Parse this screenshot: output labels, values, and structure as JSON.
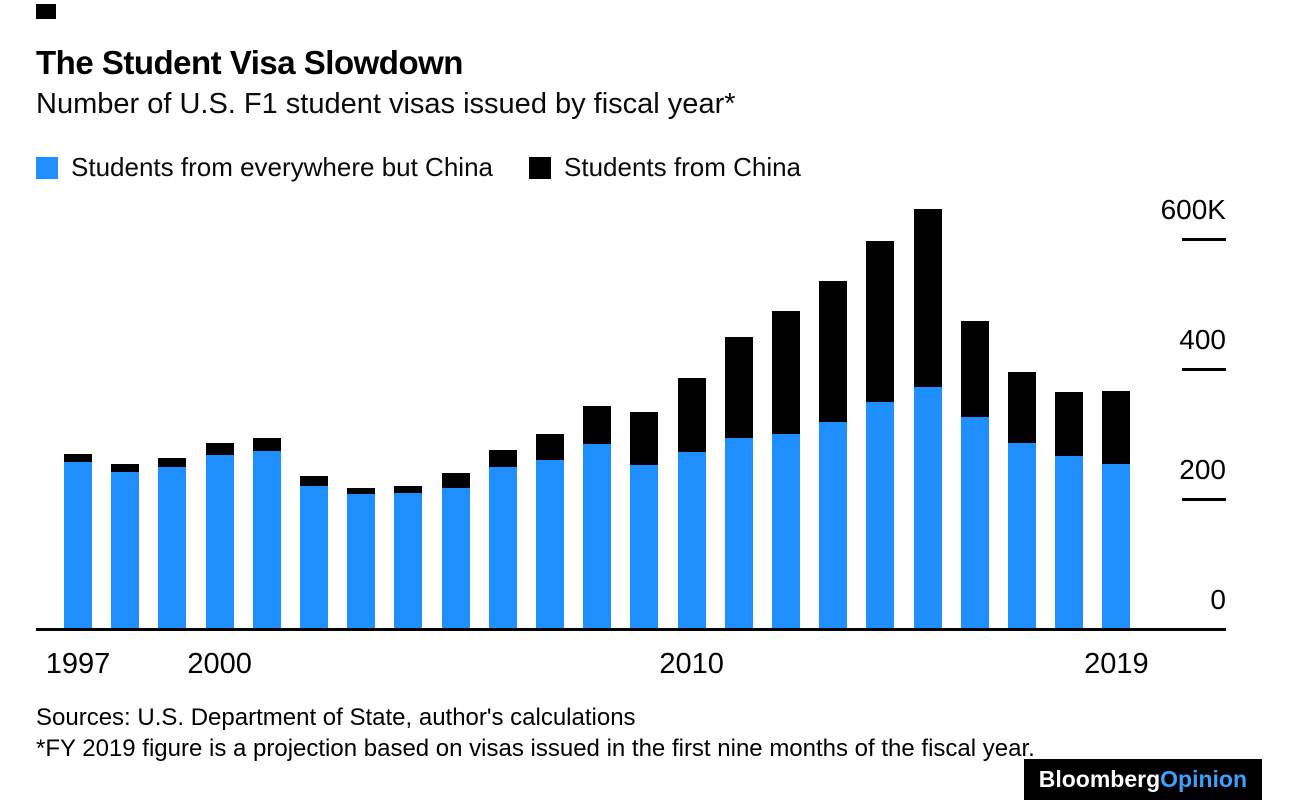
{
  "header": {
    "title": "The Student Visa Slowdown",
    "subtitle": "Number of U.S. F1 student visas issued by fiscal year*"
  },
  "legend": {
    "items": [
      {
        "label": "Students from everywhere but China",
        "color": "#1f8fff"
      },
      {
        "label": "Students from China",
        "color": "#000000"
      }
    ]
  },
  "chart_data": {
    "type": "bar",
    "stacked": true,
    "title": "The Student Visa Slowdown",
    "subtitle": "Number of U.S. F1 student visas issued by fiscal year*",
    "unit": "thousands of visas (K)",
    "grid": false,
    "legend_position": "top-left",
    "categories": [
      1997,
      1998,
      1999,
      2000,
      2001,
      2002,
      2003,
      2004,
      2005,
      2006,
      2007,
      2008,
      2009,
      2010,
      2011,
      2012,
      2013,
      2014,
      2015,
      2016,
      2017,
      2018,
      2019
    ],
    "series": [
      {
        "name": "Students from everywhere but China",
        "color": "#1f8fff",
        "values": [
          255,
          240,
          248,
          266,
          272,
          219,
          206,
          207,
          216,
          247,
          258,
          283,
          251,
          271,
          293,
          298,
          317,
          348,
          370,
          324,
          284,
          264,
          252
        ]
      },
      {
        "name": "Students from China",
        "color": "#000000",
        "values": [
          12,
          12,
          14,
          18,
          21,
          15,
          10,
          12,
          22,
          27,
          40,
          58,
          81,
          114,
          154,
          189,
          217,
          248,
          274,
          148,
          110,
          99,
          112
        ]
      }
    ],
    "ylim": [
      0,
      660
    ],
    "y_ticks": [
      {
        "label": "600K",
        "value": 600
      },
      {
        "label": "400",
        "value": 400
      },
      {
        "label": "200",
        "value": 200
      },
      {
        "label": "0",
        "value": 0
      }
    ],
    "x_ticks": [
      1997,
      2000,
      2010,
      2019
    ]
  },
  "footer": {
    "sources": "Sources: U.S. Department of State, author's calculations",
    "footnote": "*FY 2019 figure is a projection based on visas issued in the first nine months of the fiscal year.",
    "logo": {
      "brand": "Bloomberg",
      "product": "Opinion"
    }
  },
  "colors": {
    "bar_other": "#1f8fff",
    "bar_china": "#000000",
    "axis": "#000000",
    "background": "#ffffff",
    "logo_background": "#000000",
    "logo_brand": "#ffffff",
    "logo_product": "#3ba1ff"
  }
}
